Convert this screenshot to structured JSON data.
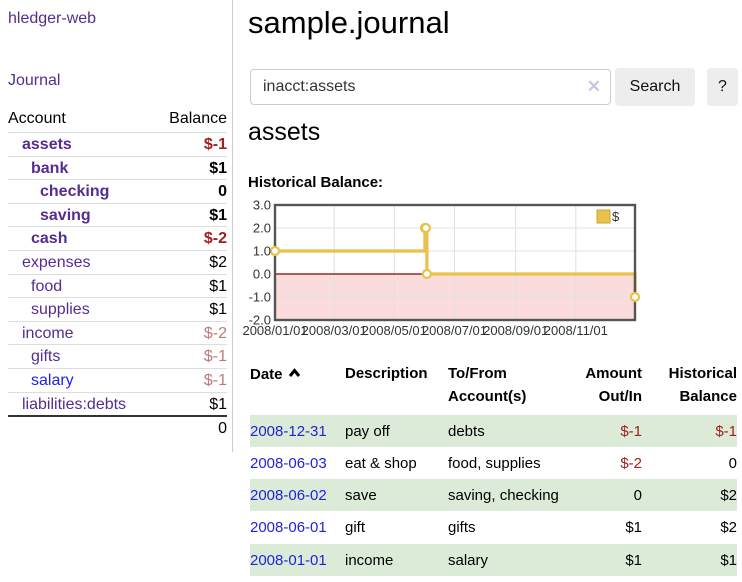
{
  "colors": {
    "link_purple": "#552d90",
    "link_blue": "#2222dd",
    "negative_strong": "#a02020",
    "negative_soft": "#bd7b7b",
    "row_stripe_green": "#dcebd7",
    "chart_line_gold": "#e8c24a",
    "chart_negative_fill": "#fbdcdc",
    "chart_zero_line": "#8b0000",
    "chart_border": "#555555",
    "button_bg": "#ededed"
  },
  "sidebar": {
    "brand": "hledger-web",
    "journal_link": "Journal",
    "accounts_table": {
      "headers": {
        "account": "Account",
        "balance": "Balance"
      },
      "rows": [
        {
          "name": "assets",
          "depth": 1,
          "bold": true,
          "link_tone": "purple",
          "balance": "$-1",
          "balance_tone": "neg-strong"
        },
        {
          "name": "bank",
          "depth": 2,
          "bold": true,
          "link_tone": "purple",
          "balance": "$1",
          "balance_tone": ""
        },
        {
          "name": "checking",
          "depth": 3,
          "bold": true,
          "link_tone": "purple",
          "balance": "0",
          "balance_tone": ""
        },
        {
          "name": "saving",
          "depth": 3,
          "bold": true,
          "link_tone": "purple",
          "balance": "$1",
          "balance_tone": ""
        },
        {
          "name": "cash",
          "depth": 2,
          "bold": true,
          "link_tone": "purple",
          "balance": "$-2",
          "balance_tone": "neg-strong"
        },
        {
          "name": "expenses",
          "depth": 1,
          "bold": false,
          "link_tone": "purple",
          "balance": "$2",
          "balance_tone": ""
        },
        {
          "name": "food",
          "depth": 2,
          "bold": false,
          "link_tone": "purple",
          "balance": "$1",
          "balance_tone": ""
        },
        {
          "name": "supplies",
          "depth": 2,
          "bold": false,
          "link_tone": "purple",
          "balance": "$1",
          "balance_tone": ""
        },
        {
          "name": "income",
          "depth": 1,
          "bold": false,
          "link_tone": "purple",
          "balance": "$-2",
          "balance_tone": "neg-soft"
        },
        {
          "name": "gifts",
          "depth": 2,
          "bold": false,
          "link_tone": "purple",
          "balance": "$-1",
          "balance_tone": "neg-soft"
        },
        {
          "name": "salary",
          "depth": 2,
          "bold": false,
          "link_tone": "blue",
          "balance": "$-1",
          "balance_tone": "neg-soft"
        },
        {
          "name": "liabilities:debts",
          "depth": 1,
          "bold": false,
          "link_tone": "purple",
          "balance": "$1",
          "balance_tone": ""
        }
      ],
      "total": "0"
    }
  },
  "main": {
    "title": "sample.journal",
    "search": {
      "value": "inacct:assets",
      "clear_icon": "✕",
      "search_button": "Search",
      "help_button": "?"
    },
    "account_heading": "assets",
    "chart_label": "Historical Balance:",
    "register": {
      "headers": {
        "date": "Date",
        "description": "Description",
        "accounts": "To/From Account(s)",
        "amount": "Amount Out/In",
        "balance": "Historical Balance"
      },
      "rows": [
        {
          "date": "2008-12-31",
          "description": "pay off",
          "accounts": "debts",
          "amount": "$-1",
          "amount_neg": true,
          "balance": "$-1",
          "balance_neg": true
        },
        {
          "date": "2008-06-03",
          "description": "eat & shop",
          "accounts": "food, supplies",
          "amount": "$-2",
          "amount_neg": true,
          "balance": "0",
          "balance_neg": false
        },
        {
          "date": "2008-06-02",
          "description": "save",
          "accounts": "saving, checking",
          "amount": "0",
          "amount_neg": false,
          "balance": "$2",
          "balance_neg": false
        },
        {
          "date": "2008-06-01",
          "description": "gift",
          "accounts": "gifts",
          "amount": "$1",
          "amount_neg": false,
          "balance": "$2",
          "balance_neg": false
        },
        {
          "date": "2008-01-01",
          "description": "income",
          "accounts": "salary",
          "amount": "$1",
          "amount_neg": false,
          "balance": "$1",
          "balance_neg": false
        }
      ]
    }
  },
  "chart_data": {
    "type": "line",
    "style": "step",
    "title": "Historical Balance:",
    "legend": [
      {
        "label": "$",
        "color": "#e8c24a"
      }
    ],
    "legend_position": "top-right",
    "grid": true,
    "xlim": [
      "2008-01-01",
      "2008-12-31"
    ],
    "ylim": [
      -2.0,
      3.0
    ],
    "x_ticks": [
      "2008/01/01",
      "2008/03/01",
      "2008/05/01",
      "2008/07/01",
      "2008/09/01",
      "2008/11/01"
    ],
    "y_ticks": [
      3.0,
      2.0,
      1.0,
      0.0,
      -1.0,
      -2.0
    ],
    "y_tick_labels": [
      "3.0",
      "2.0",
      "1.0",
      "0.0",
      "-1.0",
      "-2.0"
    ],
    "series": [
      {
        "name": "$",
        "points": [
          [
            "2008-01-01",
            1
          ],
          [
            "2008-06-01",
            2
          ],
          [
            "2008-06-02",
            2
          ],
          [
            "2008-06-03",
            0
          ],
          [
            "2008-12-31",
            -1
          ]
        ]
      }
    ]
  }
}
